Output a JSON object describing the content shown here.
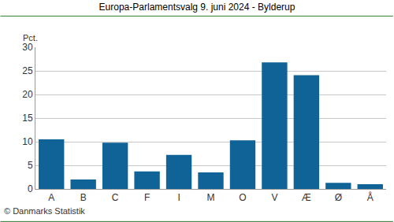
{
  "chart_data": {
    "type": "bar",
    "title": "Europa-Parlamentsvalg 9. juni 2024 - Bylderup",
    "y_label": "Pct.",
    "note": "© Danmarks Statistik",
    "categories": [
      "A",
      "B",
      "C",
      "F",
      "I",
      "M",
      "O",
      "V",
      "Æ",
      "Ø",
      "Å"
    ],
    "values": [
      10.5,
      2.0,
      9.8,
      3.7,
      7.2,
      3.5,
      10.3,
      26.8,
      24.1,
      1.3,
      1.0
    ],
    "color": "#0f6396",
    "ylim": [
      0,
      30
    ],
    "yticks": [
      0,
      5,
      10,
      15,
      20,
      25,
      30
    ],
    "grid": true
  }
}
